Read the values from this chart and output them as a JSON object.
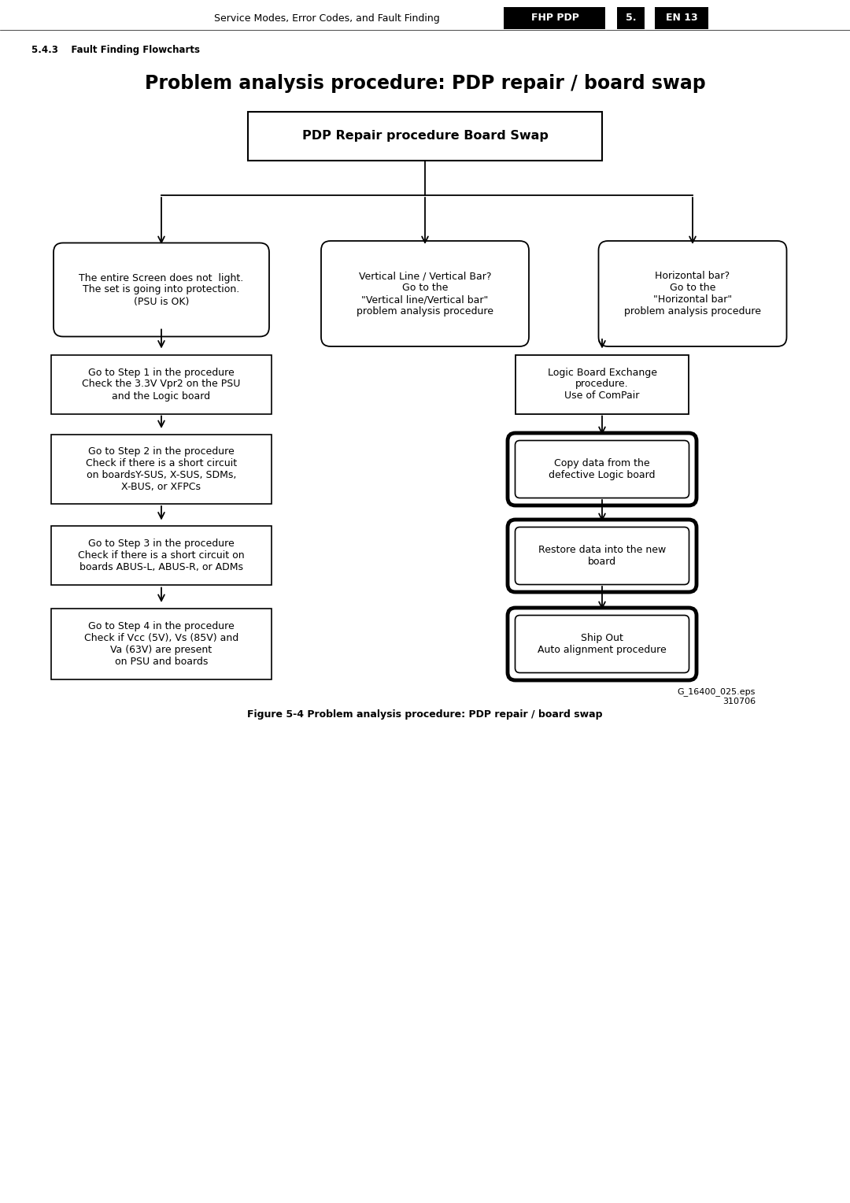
{
  "header_text": "Service Modes, Error Codes, and Fault Finding",
  "header_label1": "FHP PDP",
  "header_label2": "5.",
  "header_label3": "EN 13",
  "section_label": "5.4.3    Fault Finding Flowcharts",
  "title": "Problem analysis procedure: PDP repair / board swap",
  "top_box": "PDP Repair procedure Board Swap",
  "box_left": "The entire Screen does not  light.\nThe set is going into protection.\n(PSU is OK)",
  "box_mid": "Vertical Line / Vertical Bar?\nGo to the\n\"Vertical line/Vertical bar\"\nproblem analysis procedure",
  "box_right": "Horizontal bar?\nGo to the\n\"Horizontal bar\"\nproblem analysis procedure",
  "box_l1": "Go to Step 1 in the procedure\nCheck the 3.3V Vpr2 on the PSU\nand the Logic board",
  "box_l2": "Go to Step 2 in the procedure\nCheck if there is a short circuit\non boardsY-SUS, X-SUS, SDMs,\nX-BUS, or XFPCs",
  "box_l3": "Go to Step 3 in the procedure\nCheck if there is a short circuit on\nboards ABUS-L, ABUS-R, or ADMs",
  "box_l4": "Go to Step 4 in the procedure\nCheck if Vcc (5V), Vs (85V) and\nVa (63V) are present\non PSU and boards",
  "box_r1": "Logic Board Exchange\nprocedure.\nUse of ComPair",
  "box_r2": "Copy data from the\ndefective Logic board",
  "box_r3": "Restore data into the new\nboard",
  "box_r4": "Ship Out\nAuto alignment procedure",
  "caption": "Figure 5-4 Problem analysis procedure: PDP repair / board swap",
  "eps_label": "G_16400_025.eps\n310706",
  "bg_color": "#ffffff"
}
